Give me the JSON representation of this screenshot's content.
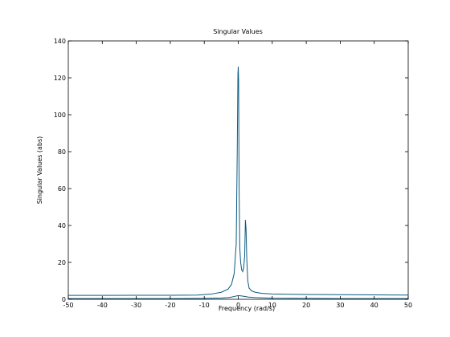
{
  "chart_data": {
    "type": "line",
    "title": "Singular Values",
    "xlabel": "Frequency (rad/s)",
    "ylabel": "Singular Values (abs)",
    "xlim": [
      -50,
      50
    ],
    "ylim": [
      0,
      140
    ],
    "x_ticks": [
      "-50",
      "-40",
      "-30",
      "-20",
      "-10",
      "0",
      "10",
      "20",
      "30",
      "40",
      "50"
    ],
    "y_ticks": [
      "0",
      "20",
      "40",
      "60",
      "80",
      "100",
      "120",
      "140"
    ],
    "grid": false,
    "series": [
      {
        "color": "#0b5a80",
        "x": [
          -50,
          -40,
          -30,
          -20,
          -12,
          -8,
          -5,
          -3,
          -2,
          -1.2,
          -0.6,
          -0.3,
          -0.1,
          0,
          0.1,
          0.25,
          0.45,
          0.7,
          1.0,
          1.3,
          1.6,
          1.9,
          2.1,
          2.3,
          2.5,
          2.8,
          3.2,
          4,
          5,
          7,
          10,
          15,
          20,
          30,
          40,
          50
        ],
        "y": [
          2.1,
          2.1,
          2.2,
          2.2,
          2.3,
          2.8,
          3.8,
          5.5,
          8,
          14,
          30,
          80,
          122,
          126,
          119,
          60,
          28,
          20,
          16,
          15,
          17,
          24,
          43,
          38,
          22,
          10,
          6,
          4.5,
          3.8,
          3.2,
          2.9,
          2.7,
          2.6,
          2.5,
          2.4,
          2.3
        ]
      },
      {
        "color": "#0b5a80",
        "x": [
          -50,
          -40,
          -30,
          -20,
          -10,
          -5,
          -3,
          -2,
          -1,
          0,
          1,
          2,
          3,
          5,
          10,
          20,
          30,
          40,
          50
        ],
        "y": [
          0.4,
          0.4,
          0.4,
          0.4,
          0.5,
          0.7,
          0.9,
          1.2,
          1.6,
          2.0,
          1.8,
          1.5,
          1.2,
          0.9,
          0.6,
          0.5,
          0.4,
          0.4,
          0.4
        ]
      }
    ]
  }
}
